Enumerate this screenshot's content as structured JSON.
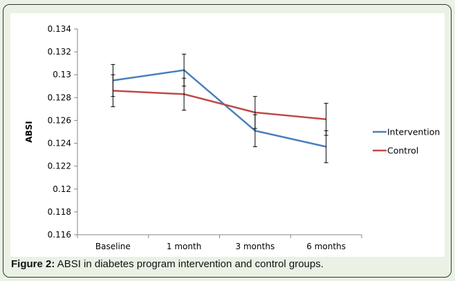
{
  "caption": {
    "label": "Figure 2:",
    "text": " ABSI in diabetes program intervention and control groups."
  },
  "chart_data": {
    "type": "line",
    "categories": [
      "Baseline",
      "1 month",
      "3 months",
      "6 months"
    ],
    "ylabel": "ABSI",
    "xlabel": "",
    "ylim": [
      0.116,
      0.134
    ],
    "yticks": [
      0.116,
      0.118,
      0.12,
      0.122,
      0.124,
      0.126,
      0.128,
      0.13,
      0.132,
      0.134
    ],
    "ytick_labels": [
      "0.116",
      "0.118",
      "0.12",
      "0.122",
      "0.124",
      "0.126",
      "0.128",
      "0.13",
      "0.132",
      "0.134"
    ],
    "grid": false,
    "legend_position": "right",
    "series": [
      {
        "name": "Intervention",
        "color": "#4a7ebb",
        "values": [
          0.1295,
          0.1304,
          0.1251,
          0.1237
        ],
        "error": [
          0.0014,
          0.0014,
          0.0014,
          0.0014
        ]
      },
      {
        "name": "Control",
        "color": "#be4b48",
        "values": [
          0.1286,
          0.1283,
          0.1267,
          0.1261
        ],
        "error": [
          0.0014,
          0.0014,
          0.0014,
          0.0014
        ]
      }
    ]
  }
}
